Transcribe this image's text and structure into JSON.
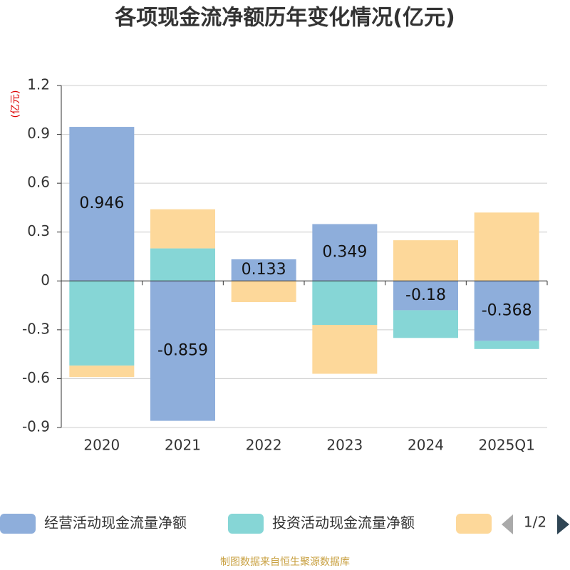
{
  "chart_data": {
    "type": "stacked_bar",
    "title": "各项现金流净额历年变化情况(亿元)",
    "y_axis_label": "(亿元)",
    "categories": [
      "2020",
      "2021",
      "2022",
      "2023",
      "2024",
      "2025Q1"
    ],
    "series": [
      {
        "name": "经营活动现金流量净额",
        "color": "#8eaedb",
        "values": [
          0.946,
          -0.859,
          0.133,
          0.349,
          -0.18,
          -0.368
        ],
        "show_labels": true
      },
      {
        "name": "投资活动现金流量净额",
        "color": "#86d6d6",
        "values": [
          -0.52,
          0.2,
          0,
          -0.27,
          -0.17,
          -0.05
        ]
      },
      {
        "color": "#fdd89a",
        "values": [
          -0.07,
          0.24,
          -0.13,
          -0.3,
          0.25,
          0.42
        ]
      }
    ],
    "ylim": [
      -0.9,
      1.2
    ],
    "yticks": [
      -0.9,
      -0.6,
      -0.3,
      0,
      0.3,
      0.6,
      0.9,
      1.2
    ],
    "grid": true,
    "legend_page": "1/2",
    "source": "制图数据来自恒生聚源数据库"
  }
}
